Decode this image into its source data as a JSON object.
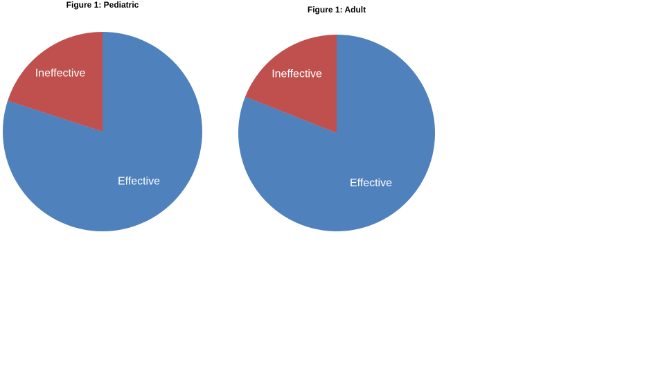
{
  "chart_data": [
    {
      "type": "pie",
      "title": "Figure 1: Pediatric",
      "categories": [
        "Effective",
        "Ineffective"
      ],
      "values": [
        80,
        20
      ],
      "colors": [
        "#4f81bd",
        "#c0504d"
      ],
      "legend": "none"
    },
    {
      "type": "pie",
      "title": "Figure 1: Adult",
      "categories": [
        "Effective",
        "Ineffective"
      ],
      "values": [
        81,
        19
      ],
      "colors": [
        "#4f81bd",
        "#c0504d"
      ],
      "legend": "none"
    }
  ]
}
